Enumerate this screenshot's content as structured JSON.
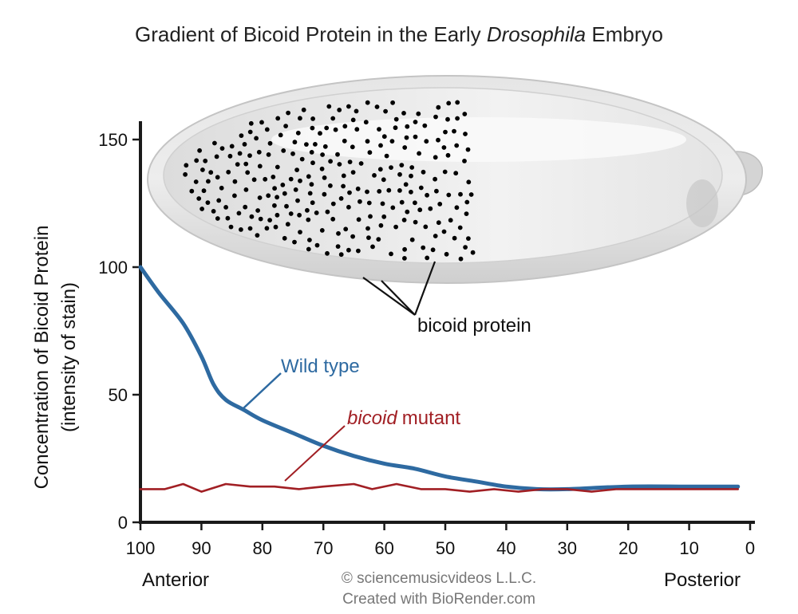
{
  "chart_data": {
    "type": "line",
    "title_part1": "Gradient of Bicoid Protein in the Early",
    "title_italic": "Drosophila",
    "title_part2": "Embryo",
    "ylabel_line1": "Concentration of Bicoid Protein",
    "ylabel_line2": "(intensity of stain)",
    "xlabel_left": "Anterior",
    "xlabel_right": "Posterior",
    "x_ticks": [
      100,
      90,
      80,
      70,
      60,
      50,
      40,
      30,
      20,
      10,
      0
    ],
    "y_ticks": [
      0,
      50,
      100,
      150
    ],
    "xlim": [
      100,
      0
    ],
    "ylim": [
      0,
      160
    ],
    "series": [
      {
        "name": "Wild type",
        "color": "#2e6aa1",
        "x": [
          100,
          97,
          93,
          90,
          88,
          86,
          83,
          80,
          75,
          70,
          65,
          60,
          55,
          50,
          45,
          40,
          35,
          30,
          20,
          10,
          2
        ],
        "y": [
          100,
          90,
          78,
          65,
          54,
          48,
          44,
          40,
          35,
          30,
          26,
          23,
          21,
          18,
          16,
          14,
          13,
          13,
          14,
          14,
          14
        ]
      },
      {
        "name": "bicoid mutant",
        "name_italic": "bicoid",
        "name_rest": "mutant",
        "color": "#a11f24",
        "x": [
          100,
          96,
          93,
          90,
          86,
          82,
          78,
          74,
          70,
          65,
          62,
          58,
          54,
          50,
          46,
          42,
          38,
          34,
          30,
          26,
          22,
          10,
          2
        ],
        "y": [
          13,
          13,
          15,
          12,
          15,
          14,
          14,
          13,
          14,
          15,
          13,
          15,
          13,
          13,
          12,
          13,
          12,
          13,
          13,
          12,
          13,
          13,
          13
        ]
      }
    ],
    "annotations": {
      "bicoid_protein": "bicoid protein"
    }
  },
  "credits": {
    "line1": "© sciencemusicvideos L.L.C.",
    "line2": "Created with BioRender.com"
  },
  "colors": {
    "axis": "#1a1a1a",
    "embryo_fill": "#d9d9d9",
    "dots": "#000000"
  }
}
